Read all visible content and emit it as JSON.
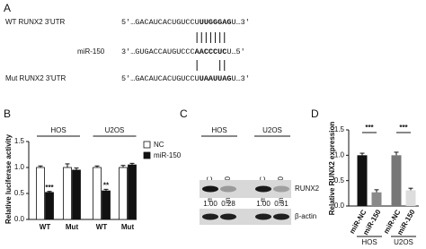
{
  "sequence_panel": {
    "label": "A",
    "rows": [
      {
        "name": "WT RUNX2 3'UTR",
        "seq": [
          "5'…GACAUCACUGUCCU",
          "UUGGGAG",
          "U…3'"
        ]
      },
      {
        "name": "miR-150",
        "seq": [
          "3'…GUGACCAUGUCCC",
          "AACCCUC",
          "U…5'"
        ]
      },
      {
        "name": "Mut RUNX2 3'UTR",
        "seq": [
          "5'…GACAUCACUGUCCU",
          "UAAUUAG",
          "U…3'"
        ]
      }
    ]
  },
  "blot_panel": {
    "label": "C",
    "groups": [
      "HOS",
      "U2OS"
    ],
    "lanes": [
      "miR-NC",
      "miR-150",
      "miR-NC",
      "miR-150"
    ],
    "proteins": [
      "RUNX2",
      "β-actin"
    ],
    "ratios": [
      "1.00",
      "0.28",
      "1.00",
      "0.31"
    ]
  },
  "chart_data": [
    {
      "type": "grouped_bar",
      "panel": "B",
      "ylabel": "Relative luciferase activity",
      "groups": [
        "HOS",
        "U2OS"
      ],
      "categories": [
        "WT",
        "Mut",
        "WT",
        "Mut"
      ],
      "series": [
        {
          "name": "NC",
          "color": "#ffffff",
          "values": [
            1,
            1,
            1,
            1
          ],
          "errors": [
            0.03,
            0.07,
            0.03,
            0.04
          ]
        },
        {
          "name": "miR-150",
          "color": "#111111",
          "values": [
            0.52,
            0.95,
            0.55,
            1.05
          ],
          "errors": [
            0.02,
            0.04,
            0.03,
            0.03
          ]
        }
      ],
      "ylim": [
        0,
        1.5
      ],
      "yticks": [
        {
          "value": 0,
          "label": "0.0"
        },
        {
          "value": 0.5,
          "label": "0.5"
        },
        {
          "value": 1,
          "label": "1.0"
        },
        {
          "value": 1.5,
          "label": "1.5"
        }
      ],
      "annotations": [
        "***",
        "**"
      ],
      "legend": "upper right"
    },
    {
      "type": "bar",
      "panel": "D",
      "ylabel": "Relative RUNX2 expression",
      "groups": [
        "HOS",
        "U2OS"
      ],
      "categories": [
        "miR-NC",
        "miR-150",
        "miR-NC",
        "miR-150"
      ],
      "values": [
        1,
        0.27,
        1,
        0.31
      ],
      "errors": [
        0.04,
        0.05,
        0.06,
        0.04
      ],
      "colors": [
        "#111111",
        "#8a8a8a",
        "#777777",
        "#dddddd"
      ],
      "ylim": [
        0,
        1.5
      ],
      "yticks": [
        {
          "value": 0,
          "label": "0.0"
        },
        {
          "value": 0.5,
          "label": "0.5"
        },
        {
          "value": 1,
          "label": "1.0"
        },
        {
          "value": 1.5,
          "label": "1.5"
        }
      ],
      "annotations": [
        "***",
        "***"
      ]
    }
  ]
}
